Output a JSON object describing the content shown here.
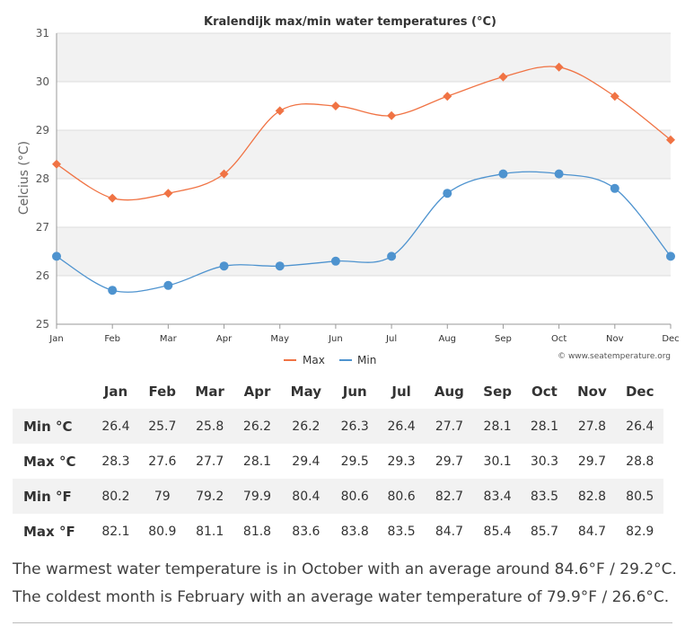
{
  "chart_data": {
    "type": "line",
    "title": "Kralendijk max/min water temperatures (°C)",
    "xlabel": "",
    "ylabel": "Celcius (°C)",
    "ylim": [
      25,
      31
    ],
    "yticks": [
      "25",
      "26",
      "27",
      "28",
      "29",
      "30",
      "31"
    ],
    "categories": [
      "Jan",
      "Feb",
      "Mar",
      "Apr",
      "May",
      "Jun",
      "Jul",
      "Aug",
      "Sep",
      "Oct",
      "Nov",
      "Dec"
    ],
    "series": [
      {
        "name": "Max",
        "color": "#f07344",
        "marker": "diamond",
        "values": [
          28.3,
          27.6,
          27.7,
          28.1,
          29.4,
          29.5,
          29.3,
          29.7,
          30.1,
          30.3,
          29.7,
          28.8
        ]
      },
      {
        "name": "Min",
        "color": "#4e93cf",
        "marker": "circle",
        "values": [
          26.4,
          25.7,
          25.8,
          26.2,
          26.2,
          26.3,
          26.4,
          27.7,
          28.1,
          28.1,
          27.8,
          26.4
        ]
      }
    ],
    "legend": "bottom-center",
    "credit": "© www.seatemperature.org"
  },
  "table": {
    "headers": [
      "",
      "Jan",
      "Feb",
      "Mar",
      "Apr",
      "May",
      "Jun",
      "Jul",
      "Aug",
      "Sep",
      "Oct",
      "Nov",
      "Dec"
    ],
    "rows": [
      {
        "label": "Min °C",
        "values": [
          "26.4",
          "25.7",
          "25.8",
          "26.2",
          "26.2",
          "26.3",
          "26.4",
          "27.7",
          "28.1",
          "28.1",
          "27.8",
          "26.4"
        ]
      },
      {
        "label": "Max °C",
        "values": [
          "28.3",
          "27.6",
          "27.7",
          "28.1",
          "29.4",
          "29.5",
          "29.3",
          "29.7",
          "30.1",
          "30.3",
          "29.7",
          "28.8"
        ]
      },
      {
        "label": "Min °F",
        "values": [
          "80.2",
          "79",
          "79.2",
          "79.9",
          "80.4",
          "80.6",
          "80.6",
          "82.7",
          "83.4",
          "83.5",
          "82.8",
          "80.5"
        ]
      },
      {
        "label": "Max °F",
        "values": [
          "82.1",
          "80.9",
          "81.1",
          "81.8",
          "83.6",
          "83.8",
          "83.5",
          "84.7",
          "85.4",
          "85.7",
          "84.7",
          "82.9"
        ]
      }
    ]
  },
  "summary": {
    "warmest": "The warmest water temperature is in October with an average around 84.6°F / 29.2°C.",
    "coldest": "The coldest month is February with an average water temperature of 79.9°F / 26.6°C."
  }
}
